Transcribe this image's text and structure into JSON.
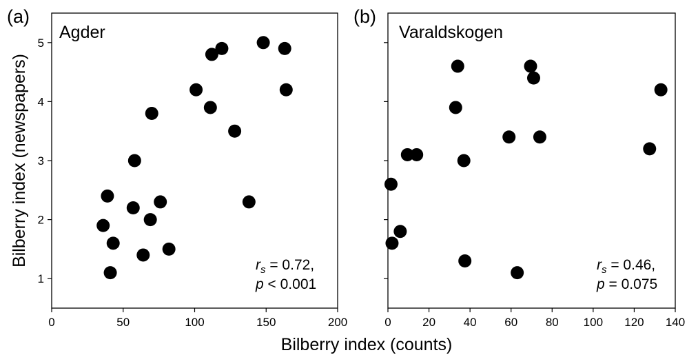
{
  "figure": {
    "shared_xlabel": "Bilberry index (counts)",
    "shared_ylabel": "Bilberry index (newspapers)"
  },
  "chart_data": [
    {
      "type": "scatter",
      "panel_letter": "(a)",
      "title": "Agder",
      "xlabel": "Bilberry index (counts)",
      "ylabel": "Bilberry index (newspapers)",
      "xlim": [
        0,
        200
      ],
      "ylim": [
        0.5,
        5.5
      ],
      "xticks": [
        0,
        50,
        100,
        150,
        200
      ],
      "yticks": [
        1,
        2,
        3,
        4,
        5
      ],
      "x_tick_labels": [
        "0",
        "50",
        "100",
        "150",
        "200"
      ],
      "y_tick_labels": [
        "1",
        "2",
        "3",
        "4",
        "5"
      ],
      "annotation": {
        "r_symbol": "r",
        "r_sub": "s",
        "r_value": " = 0.72,",
        "p_symbol": "p",
        "p_value": " < 0.001"
      },
      "points": [
        {
          "x": 36,
          "y": 1.9
        },
        {
          "x": 39,
          "y": 2.4
        },
        {
          "x": 41,
          "y": 1.1
        },
        {
          "x": 43,
          "y": 1.6
        },
        {
          "x": 57,
          "y": 2.2
        },
        {
          "x": 58,
          "y": 3.0
        },
        {
          "x": 64,
          "y": 1.4
        },
        {
          "x": 69,
          "y": 2.0
        },
        {
          "x": 70,
          "y": 3.8
        },
        {
          "x": 76,
          "y": 2.3
        },
        {
          "x": 82,
          "y": 1.5
        },
        {
          "x": 101,
          "y": 4.2
        },
        {
          "x": 111,
          "y": 3.9
        },
        {
          "x": 112,
          "y": 4.8
        },
        {
          "x": 119,
          "y": 4.9
        },
        {
          "x": 128,
          "y": 3.5
        },
        {
          "x": 138,
          "y": 2.3
        },
        {
          "x": 148,
          "y": 5.0
        },
        {
          "x": 163,
          "y": 4.9
        },
        {
          "x": 164,
          "y": 4.2
        }
      ]
    },
    {
      "type": "scatter",
      "panel_letter": "(b)",
      "title": "Varaldskogen",
      "xlabel": "Bilberry index (counts)",
      "ylabel": "",
      "xlim": [
        0,
        140
      ],
      "ylim": [
        0.5,
        5.5
      ],
      "xticks": [
        0,
        20,
        40,
        60,
        80,
        100,
        120,
        140
      ],
      "yticks": [
        1,
        2,
        3,
        4,
        5
      ],
      "x_tick_labels": [
        "0",
        "20",
        "40",
        "60",
        "80",
        "100",
        "120",
        "140"
      ],
      "y_tick_labels": [],
      "annotation": {
        "r_symbol": "r",
        "r_sub": "s",
        "r_value": " = 0.46,",
        "p_symbol": "p",
        "p_value": " = 0.075"
      },
      "points": [
        {
          "x": 1.5,
          "y": 2.6
        },
        {
          "x": 2,
          "y": 1.6
        },
        {
          "x": 6,
          "y": 1.8
        },
        {
          "x": 9.5,
          "y": 3.1
        },
        {
          "x": 14,
          "y": 3.1
        },
        {
          "x": 33,
          "y": 3.9
        },
        {
          "x": 34,
          "y": 4.6
        },
        {
          "x": 37,
          "y": 3.0
        },
        {
          "x": 37.5,
          "y": 1.3
        },
        {
          "x": 59,
          "y": 3.4
        },
        {
          "x": 63,
          "y": 1.1
        },
        {
          "x": 69.5,
          "y": 4.6
        },
        {
          "x": 71,
          "y": 4.4
        },
        {
          "x": 74,
          "y": 3.4
        },
        {
          "x": 127.5,
          "y": 3.2
        },
        {
          "x": 133,
          "y": 4.2
        }
      ]
    }
  ]
}
